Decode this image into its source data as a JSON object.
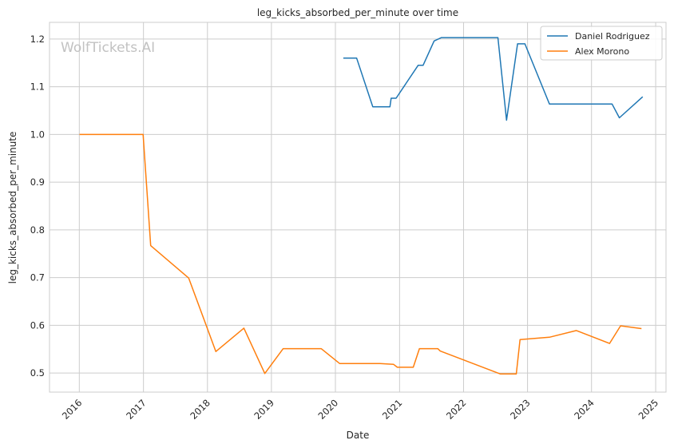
{
  "chart_data": {
    "type": "line",
    "title": "leg_kicks_absorbed_per_minute over time",
    "xlabel": "Date",
    "ylabel": "leg_kicks_absorbed_per_minute",
    "xlim": [
      "2015-07-15",
      "2025-03-01"
    ],
    "ylim": [
      0.46,
      1.235
    ],
    "grid": true,
    "legend_position": "top-right",
    "watermark": "WolfTickets.AI",
    "x_ticks": [
      {
        "date": "2016-01-01",
        "label": "2016"
      },
      {
        "date": "2017-01-01",
        "label": "2017"
      },
      {
        "date": "2018-01-01",
        "label": "2018"
      },
      {
        "date": "2019-01-01",
        "label": "2019"
      },
      {
        "date": "2020-01-01",
        "label": "2020"
      },
      {
        "date": "2021-01-01",
        "label": "2021"
      },
      {
        "date": "2022-01-01",
        "label": "2022"
      },
      {
        "date": "2023-01-01",
        "label": "2023"
      },
      {
        "date": "2024-01-01",
        "label": "2024"
      },
      {
        "date": "2025-01-01",
        "label": "2025"
      }
    ],
    "y_ticks": [
      {
        "value": 0.5,
        "label": "0.5"
      },
      {
        "value": 0.6,
        "label": "0.6"
      },
      {
        "value": 0.7,
        "label": "0.7"
      },
      {
        "value": 0.8,
        "label": "0.8"
      },
      {
        "value": 0.9,
        "label": "0.9"
      },
      {
        "value": 1.0,
        "label": "1.0"
      },
      {
        "value": 1.1,
        "label": "1.1"
      },
      {
        "value": 1.2,
        "label": "1.2"
      }
    ],
    "series": [
      {
        "name": "Daniel Rodriguez",
        "color": "#1f77b4",
        "points": [
          [
            "2020-02-15",
            1.16
          ],
          [
            "2020-05-01",
            1.16
          ],
          [
            "2020-08-01",
            1.058
          ],
          [
            "2020-11-07",
            1.058
          ],
          [
            "2020-11-14",
            1.076
          ],
          [
            "2020-12-12",
            1.076
          ],
          [
            "2021-04-17",
            1.145
          ],
          [
            "2021-05-15",
            1.145
          ],
          [
            "2021-07-17",
            1.196
          ],
          [
            "2021-08-28",
            1.203
          ],
          [
            "2022-07-16",
            1.203
          ],
          [
            "2022-09-03",
            1.03
          ],
          [
            "2022-11-05",
            1.19
          ],
          [
            "2022-12-17",
            1.19
          ],
          [
            "2023-05-06",
            1.064
          ],
          [
            "2024-04-27",
            1.064
          ],
          [
            "2024-06-08",
            1.035
          ],
          [
            "2024-10-19",
            1.079
          ]
        ]
      },
      {
        "name": "Alex Morono",
        "color": "#ff7f0e",
        "points": [
          [
            "2016-01-02",
            1.0
          ],
          [
            "2016-12-30",
            1.0
          ],
          [
            "2017-02-11",
            0.767
          ],
          [
            "2017-09-16",
            0.699
          ],
          [
            "2018-02-18",
            0.545
          ],
          [
            "2018-07-28",
            0.594
          ],
          [
            "2018-11-24",
            0.499
          ],
          [
            "2019-03-09",
            0.551
          ],
          [
            "2019-10-12",
            0.551
          ],
          [
            "2020-01-25",
            0.52
          ],
          [
            "2020-09-12",
            0.52
          ],
          [
            "2020-11-28",
            0.518
          ],
          [
            "2020-12-19",
            0.512
          ],
          [
            "2021-03-20",
            0.512
          ],
          [
            "2021-04-24",
            0.551
          ],
          [
            "2021-08-07",
            0.551
          ],
          [
            "2021-08-21",
            0.546
          ],
          [
            "2022-07-30",
            0.498
          ],
          [
            "2022-10-29",
            0.498
          ],
          [
            "2022-11-19",
            0.57
          ],
          [
            "2023-05-06",
            0.575
          ],
          [
            "2023-10-07",
            0.589
          ],
          [
            "2024-04-13",
            0.562
          ],
          [
            "2024-06-15",
            0.599
          ],
          [
            "2024-10-12",
            0.593
          ]
        ]
      }
    ]
  }
}
